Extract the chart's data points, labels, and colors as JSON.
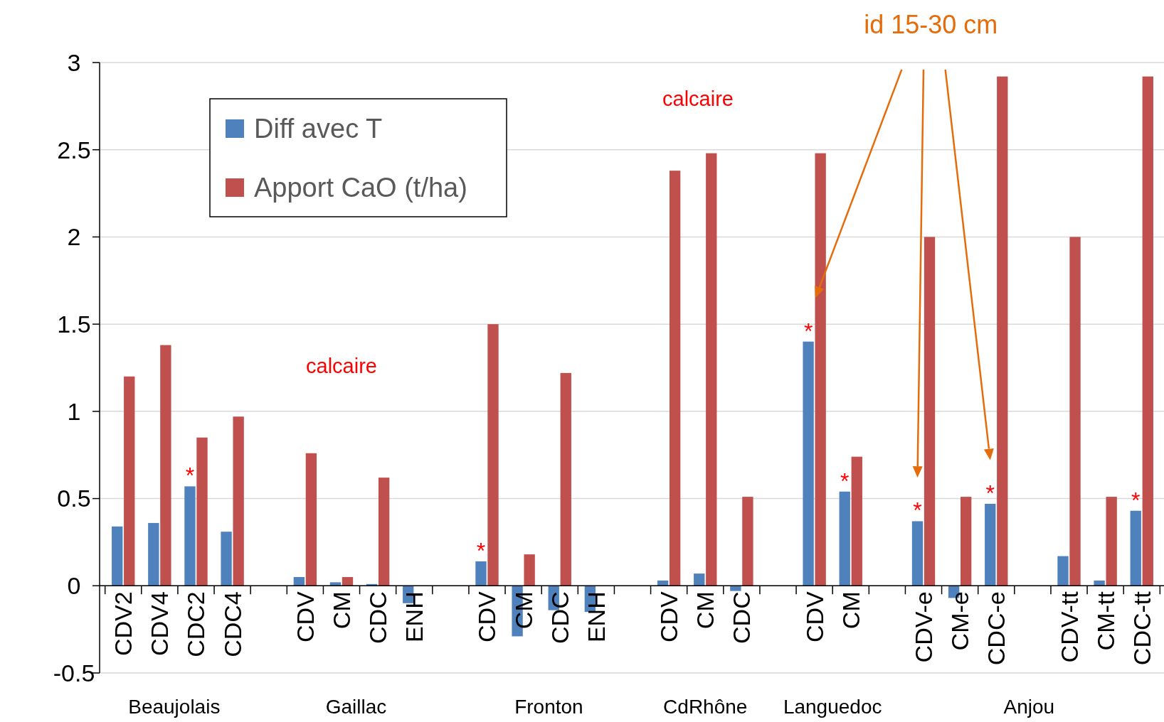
{
  "chart_data": {
    "type": "bar",
    "categories": [
      "CDV2",
      "CDV4",
      "CDC2",
      "CDC4",
      null,
      "CDV",
      "CM",
      "CDC",
      "ENH",
      null,
      "CDV",
      "CM",
      "CDC",
      "ENH",
      null,
      "CDV",
      "CM",
      "CDC",
      null,
      "CDV",
      "CM",
      null,
      "CDV-e",
      "CM-e",
      "CDC-e",
      null,
      "CDV-tt",
      "CM-tt",
      "CDC-tt"
    ],
    "series": [
      {
        "name": "Diff avec T",
        "color": "#4f81bd",
        "values": [
          0.34,
          0.36,
          0.57,
          0.31,
          null,
          0.05,
          0.02,
          0.01,
          -0.1,
          null,
          0.14,
          -0.29,
          -0.14,
          -0.15,
          null,
          0.03,
          0.07,
          -0.03,
          null,
          1.4,
          0.54,
          null,
          0.37,
          -0.07,
          0.47,
          null,
          0.17,
          0.03,
          0.43
        ],
        "value_labels": [
          null,
          null,
          "*",
          null,
          null,
          null,
          null,
          null,
          null,
          null,
          "*",
          null,
          null,
          null,
          null,
          null,
          null,
          null,
          null,
          "*",
          "*",
          null,
          "*",
          null,
          "*",
          null,
          null,
          null,
          "*"
        ]
      },
      {
        "name": "Apport CaO (t/ha)",
        "color": "#c0504d",
        "values": [
          1.2,
          1.38,
          0.85,
          0.97,
          null,
          0.76,
          0.05,
          0.62,
          null,
          null,
          1.5,
          0.18,
          1.22,
          null,
          null,
          2.38,
          2.48,
          0.51,
          null,
          2.48,
          0.74,
          null,
          2.0,
          0.51,
          2.92,
          null,
          2.0,
          0.51,
          2.92
        ]
      }
    ],
    "ylim": [
      -0.5,
      3
    ],
    "yticks": [
      -0.5,
      0,
      0.5,
      1,
      1.5,
      2,
      2.5,
      3
    ],
    "grid": "y",
    "legend": "top left",
    "annotations": [
      "Beaujolais",
      "Gaillac",
      "Fronton",
      "CdRhône",
      "Languedoc",
      "Anjou",
      "calcaire",
      "calcaire",
      "id 15-30 cm"
    ]
  }
}
